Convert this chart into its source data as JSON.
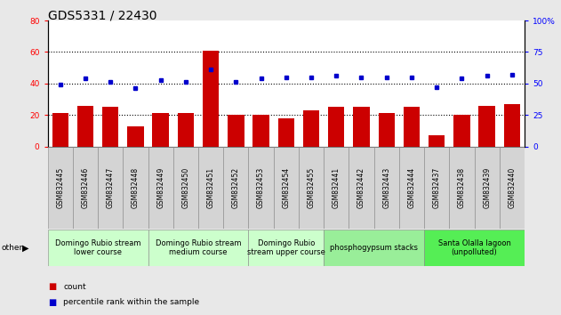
{
  "title": "GDS5331 / 22430",
  "samples": [
    "GSM832445",
    "GSM832446",
    "GSM832447",
    "GSM832448",
    "GSM832449",
    "GSM832450",
    "GSM832451",
    "GSM832452",
    "GSM832453",
    "GSM832454",
    "GSM832455",
    "GSM832441",
    "GSM832442",
    "GSM832443",
    "GSM832444",
    "GSM832437",
    "GSM832438",
    "GSM832439",
    "GSM832440"
  ],
  "counts": [
    21,
    26,
    25,
    13,
    21,
    21,
    61,
    20,
    20,
    18,
    23,
    25,
    25,
    21,
    25,
    7,
    20,
    26,
    27
  ],
  "percentiles": [
    49,
    54,
    51,
    46,
    53,
    51,
    61,
    51,
    54,
    55,
    55,
    56,
    55,
    55,
    55,
    47,
    54,
    56,
    57
  ],
  "groups": [
    {
      "label": "Domingo Rubio stream\nlower course",
      "start": 0,
      "end": 4,
      "color": "#ccffcc"
    },
    {
      "label": "Domingo Rubio stream\nmedium course",
      "start": 4,
      "end": 8,
      "color": "#ccffcc"
    },
    {
      "label": "Domingo Rubio\nstream upper course",
      "start": 8,
      "end": 11,
      "color": "#ccffcc"
    },
    {
      "label": "phosphogypsum stacks",
      "start": 11,
      "end": 15,
      "color": "#99ee99"
    },
    {
      "label": "Santa Olalla lagoon\n(unpolluted)",
      "start": 15,
      "end": 19,
      "color": "#55ee55"
    }
  ],
  "ylim_left": [
    0,
    80
  ],
  "ylim_right": [
    0,
    100
  ],
  "yticks_left": [
    0,
    20,
    40,
    60,
    80
  ],
  "yticks_right": [
    0,
    25,
    50,
    75,
    100
  ],
  "bar_color": "#cc0000",
  "dot_color": "#0000cc",
  "bg_color": "#e8e8e8",
  "plot_bg": "#ffffff",
  "title_fontsize": 10,
  "tick_fontsize": 6.5,
  "group_label_fontsize": 6.0,
  "sample_fontsize": 5.5
}
